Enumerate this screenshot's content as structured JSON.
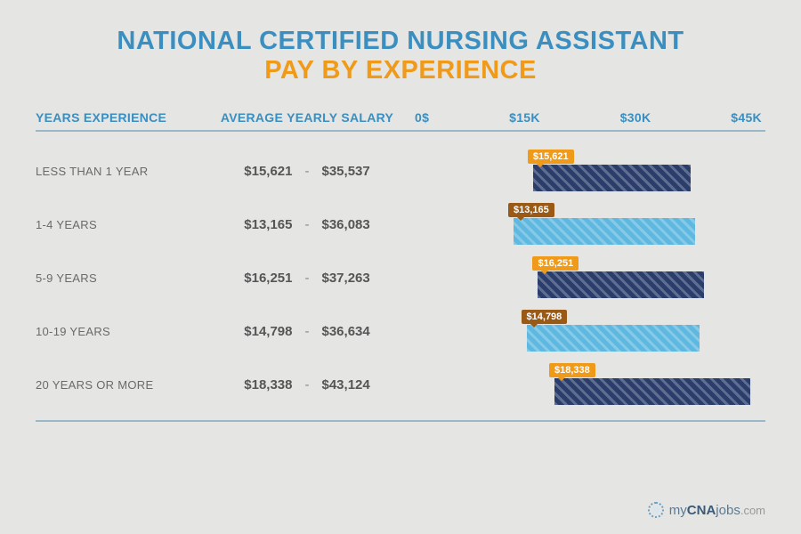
{
  "colors": {
    "title_blue": "#3a8fc0",
    "title_orange": "#f09a1a",
    "header_text": "#3a8fc0",
    "header_rule": "#9bb8c8",
    "bar_dark": "#2a3d6b",
    "bar_light": "#5fb8e0",
    "badge_orange": "#f09a1a",
    "badge_brown": "#9a5a16",
    "row_text": "#6a6a6a"
  },
  "title": {
    "line1": "NATIONAL CERTIFIED NURSING ASSISTANT",
    "line2": "PAY BY EXPERIENCE"
  },
  "headers": {
    "col1": "YEARS EXPERIENCE",
    "col2": "AVERAGE YEARLY SALARY",
    "axis": [
      "0$",
      "$15K",
      "$30K",
      "$45K"
    ]
  },
  "chart": {
    "min": 0,
    "max": 45000
  },
  "rows": [
    {
      "label": "LESS THAN 1 YEAR",
      "low": 15621,
      "high": 35537,
      "low_s": "$15,621",
      "high_s": "$35,537",
      "bar_color": "dark",
      "badge_color": "orange"
    },
    {
      "label": "1-4 YEARS",
      "low": 13165,
      "high": 36083,
      "low_s": "$13,165",
      "high_s": "$36,083",
      "bar_color": "light",
      "badge_color": "brown"
    },
    {
      "label": "5-9 YEARS",
      "low": 16251,
      "high": 37263,
      "low_s": "$16,251",
      "high_s": "$37,263",
      "bar_color": "dark",
      "badge_color": "orange"
    },
    {
      "label": "10-19 YEARS",
      "low": 14798,
      "high": 36634,
      "low_s": "$14,798",
      "high_s": "$36,634",
      "bar_color": "light",
      "badge_color": "brown"
    },
    {
      "label": "20 YEARS OR MORE",
      "low": 18338,
      "high": 43124,
      "low_s": "$18,338",
      "high_s": "$43,124",
      "bar_color": "dark",
      "badge_color": "orange"
    }
  ],
  "footer": {
    "brand_pre": "my",
    "brand_main": "CNA",
    "brand_post": "jobs",
    "tld": ".com"
  }
}
